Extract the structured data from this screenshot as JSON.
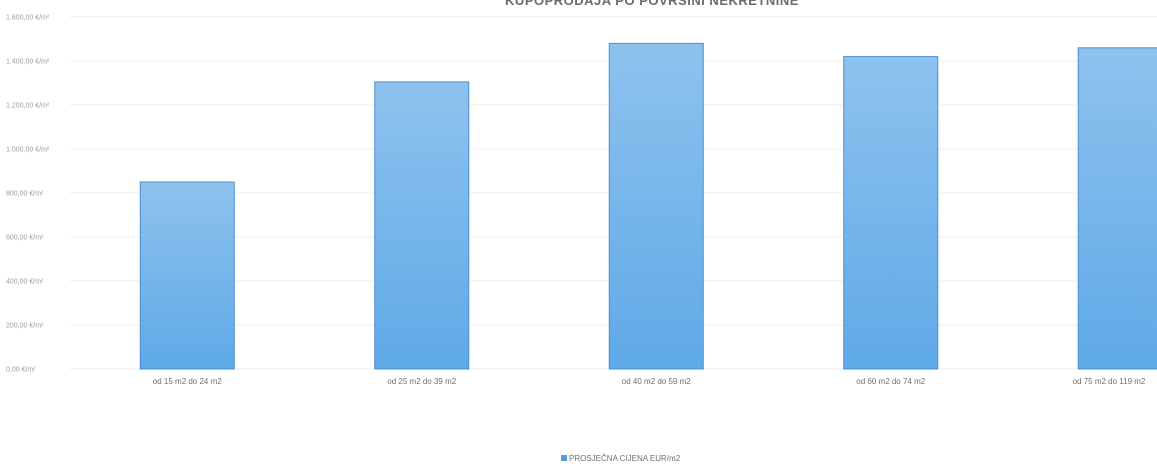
{
  "chart_data": {
    "type": "bar",
    "title": "KUPOPRODAJA PO POVRŠINI NEKRETNINE",
    "categories": [
      "od 15 m2 do 24 m2",
      "od 25 m2 do 39 m2",
      "od 40 m2 do 59 m2",
      "od 60 m2 do 74 m2",
      "od 75 m2 do 119 m2"
    ],
    "series": [
      {
        "name": "PROSJEČNA CIJENA EUR/m2",
        "values": [
          850,
          1305,
          1480,
          1420,
          1460
        ]
      }
    ],
    "ylim": [
      0,
      1600
    ],
    "y_ticks": [
      0,
      200,
      400,
      600,
      800,
      1000,
      1200,
      1400,
      1600
    ],
    "y_tick_labels": [
      "0,00 €/m²",
      "200,00 €/m²",
      "400,00 €/m²",
      "600,00 €/m²",
      "800,00 €/m²",
      "1.000,00 €/m²",
      "1.200,00 €/m²",
      "1.400,00 €/m²",
      "1.600,00 €/m²"
    ],
    "xlabel": "",
    "ylabel": "",
    "grid": true,
    "legend_position": "bottom",
    "colors": {
      "bar_fill_top": "#8ec2ee",
      "bar_fill_bottom": "#5fa9e8",
      "bar_stroke": "#4a8fcf",
      "legend_swatch": "#5b9bd5",
      "gridline": "#eeeeee"
    }
  }
}
